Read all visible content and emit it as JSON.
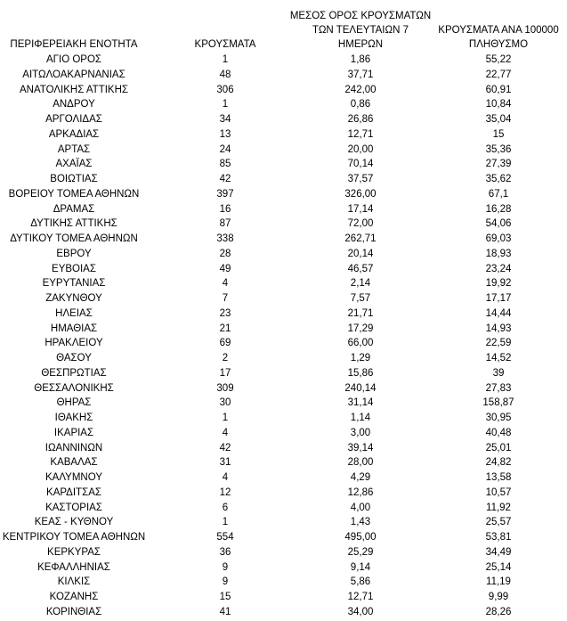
{
  "table": {
    "header": [
      [
        "ΠΕΡΙΦΕΡΕΙΑΚΗ ΕΝΟΤΗΤΑ"
      ],
      [
        "ΚΡΟΥΣΜΑΤΑ"
      ],
      [
        "ΜΕΣΟΣ ΟΡΟΣ ΚΡΟΥΣΜΑΤΩΝ",
        "ΤΩΝ ΤΕΛΕΥΤΑΙΩΝ 7",
        "ΗΜΕΡΩΝ"
      ],
      [
        "ΚΡΟΥΣΜΑΤΑ ΑΝΑ 100000",
        "ΠΛΗΘΥΣΜΟ"
      ]
    ],
    "rows": [
      [
        "ΑΓΙΟ ΟΡΟΣ",
        "1",
        "1,86",
        "55,22"
      ],
      [
        "ΑΙΤΩΛΟΑΚΑΡΝΑΝΙΑΣ",
        "48",
        "37,71",
        "22,77"
      ],
      [
        "ΑΝΑΤΟΛΙΚΗΣ ΑΤΤΙΚΗΣ",
        "306",
        "242,00",
        "60,91"
      ],
      [
        "ΑΝΔΡΟΥ",
        "1",
        "0,86",
        "10,84"
      ],
      [
        "ΑΡΓΟΛΙΔΑΣ",
        "34",
        "26,86",
        "35,04"
      ],
      [
        "ΑΡΚΑΔΙΑΣ",
        "13",
        "12,71",
        "15"
      ],
      [
        "ΑΡΤΑΣ",
        "24",
        "20,00",
        "35,36"
      ],
      [
        "ΑΧΑΪΑΣ",
        "85",
        "70,14",
        "27,39"
      ],
      [
        "ΒΟΙΩΤΙΑΣ",
        "42",
        "37,57",
        "35,62"
      ],
      [
        "ΒΟΡΕΙΟΥ ΤΟΜΕΑ ΑΘΗΝΩΝ",
        "397",
        "326,00",
        "67,1"
      ],
      [
        "ΔΡΑΜΑΣ",
        "16",
        "17,14",
        "16,28"
      ],
      [
        "ΔΥΤΙΚΗΣ ΑΤΤΙΚΗΣ",
        "87",
        "72,00",
        "54,06"
      ],
      [
        "ΔΥΤΙΚΟΥ ΤΟΜΕΑ ΑΘΗΝΩΝ",
        "338",
        "262,71",
        "69,03"
      ],
      [
        "ΕΒΡΟΥ",
        "28",
        "20,14",
        "18,93"
      ],
      [
        "ΕΥΒΟΙΑΣ",
        "49",
        "46,57",
        "23,24"
      ],
      [
        "ΕΥΡΥΤΑΝΙΑΣ",
        "4",
        "2,14",
        "19,92"
      ],
      [
        "ΖΑΚΥΝΘΟΥ",
        "7",
        "7,57",
        "17,17"
      ],
      [
        "ΗΛΕΙΑΣ",
        "23",
        "21,71",
        "14,44"
      ],
      [
        "ΗΜΑΘΙΑΣ",
        "21",
        "17,29",
        "14,93"
      ],
      [
        "ΗΡΑΚΛΕΙΟΥ",
        "69",
        "66,00",
        "22,59"
      ],
      [
        "ΘΑΣΟΥ",
        "2",
        "1,29",
        "14,52"
      ],
      [
        "ΘΕΣΠΡΩΤΙΑΣ",
        "17",
        "15,86",
        "39"
      ],
      [
        "ΘΕΣΣΑΛΟΝΙΚΗΣ",
        "309",
        "240,14",
        "27,83"
      ],
      [
        "ΘΗΡΑΣ",
        "30",
        "31,14",
        "158,87"
      ],
      [
        "ΙΘΑΚΗΣ",
        "1",
        "1,14",
        "30,95"
      ],
      [
        "ΙΚΑΡΙΑΣ",
        "4",
        "3,00",
        "40,48"
      ],
      [
        "ΙΩΑΝΝΙΝΩΝ",
        "42",
        "39,14",
        "25,01"
      ],
      [
        "ΚΑΒΑΛΑΣ",
        "31",
        "28,00",
        "24,82"
      ],
      [
        "ΚΑΛΥΜΝΟΥ",
        "4",
        "4,29",
        "13,58"
      ],
      [
        "ΚΑΡΔΙΤΣΑΣ",
        "12",
        "12,86",
        "10,57"
      ],
      [
        "ΚΑΣΤΟΡΙΑΣ",
        "6",
        "4,00",
        "11,92"
      ],
      [
        "ΚΕΑΣ - ΚΥΘΝΟΥ",
        "1",
        "1,43",
        "25,57"
      ],
      [
        "ΚΕΝΤΡΙΚΟΥ ΤΟΜΕΑ ΑΘΗΝΩΝ",
        "554",
        "495,00",
        "53,81"
      ],
      [
        "ΚΕΡΚΥΡΑΣ",
        "36",
        "25,29",
        "34,49"
      ],
      [
        "ΚΕΦΑΛΛΗΝΙΑΣ",
        "9",
        "9,14",
        "25,14"
      ],
      [
        "ΚΙΛΚΙΣ",
        "9",
        "5,86",
        "11,19"
      ],
      [
        "ΚΟΖΑΝΗΣ",
        "15",
        "12,71",
        "9,99"
      ],
      [
        "ΚΟΡΙΝΘΙΑΣ",
        "41",
        "34,00",
        "28,26"
      ]
    ]
  }
}
